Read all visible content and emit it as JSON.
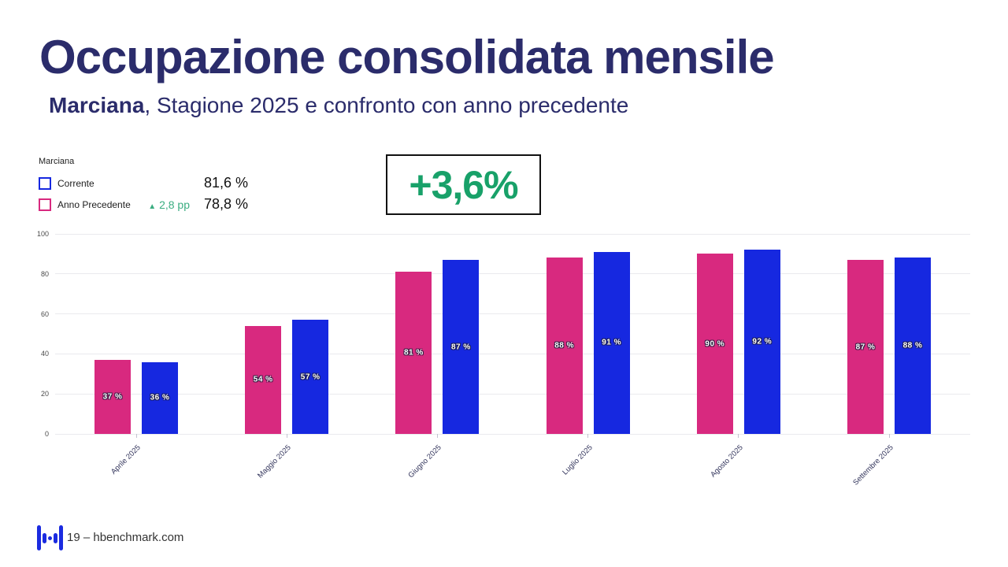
{
  "slide": {
    "title": "Occupazione consolidata mensile",
    "subtitle_bold": "Marciana",
    "subtitle_rest": ", Stagione 2025 e confronto con anno precedente"
  },
  "legend": {
    "heading": "Marciana",
    "rows": [
      {
        "label": "Corrente",
        "value": "81,6 %",
        "color": "#1628e0"
      },
      {
        "label": "Anno Precedente",
        "value": "78,8 %",
        "color": "#d8297f",
        "delta_arrow": "▲",
        "delta": "2,8 pp"
      }
    ],
    "delta_color": "#3bad81"
  },
  "delta_box": {
    "value": "+3,6%",
    "color": "#18a169"
  },
  "chart_data": {
    "type": "bar",
    "categories": [
      "Aprile 2025",
      "Maggio 2025",
      "Giugno 2025",
      "Luglio 2025",
      "Agosto 2025",
      "Settembre 2025"
    ],
    "series": [
      {
        "name": "Anno Precedente",
        "color": "#d8297f",
        "values": [
          37,
          54,
          81,
          88,
          90,
          87
        ],
        "labels": [
          "37 %",
          "54 %",
          "81 %",
          "88 %",
          "90 %",
          "87 %"
        ]
      },
      {
        "name": "Corrente",
        "color": "#1628e0",
        "values": [
          36,
          57,
          87,
          91,
          92,
          88
        ],
        "labels": [
          "36 %",
          "57 %",
          "87 %",
          "91 %",
          "92 %",
          "88 %"
        ]
      }
    ],
    "ylim": [
      0,
      100
    ],
    "yticks": [
      0,
      20,
      40,
      60,
      80,
      100
    ],
    "grid": true,
    "legend_position": "top-left",
    "bar_label_position": "center"
  },
  "footer": {
    "text": "19 – hbenchmark.com"
  },
  "colors": {
    "title": "#2b2c6b",
    "current": "#1628e0",
    "previous": "#d8297f",
    "positive_green": "#18a169",
    "logo_blue": "#1b2be0"
  }
}
